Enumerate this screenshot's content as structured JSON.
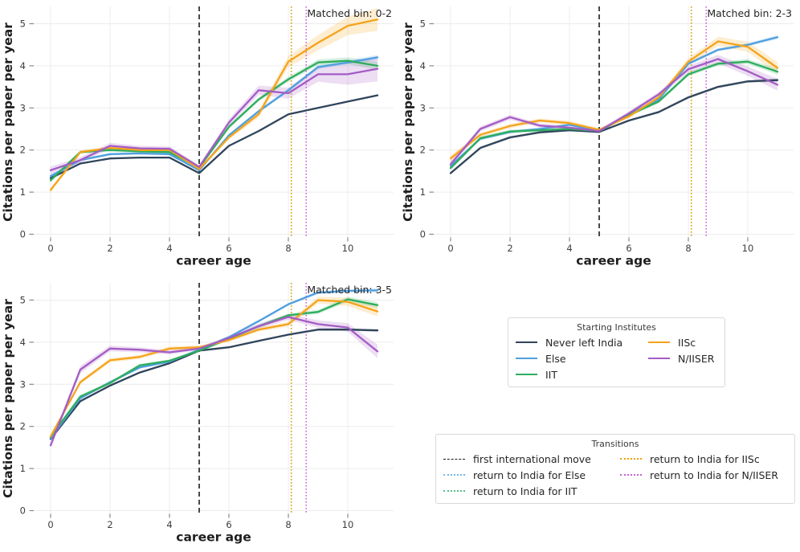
{
  "colors": {
    "never": "#30455c",
    "else": "#4f9fdf",
    "iit": "#2dad5d",
    "iisc": "#f5a31b",
    "niiser": "#a45cc5",
    "move": "#1c1c1c",
    "else_t": "#74b7e8",
    "iit_t": "#56bd8b",
    "iisc_t": "#f0a202",
    "niiser_t": "#c45fd4"
  },
  "legends": {
    "institutes": {
      "title": "Starting Institutes",
      "items": [
        {
          "label": "Never left India",
          "key": "never",
          "style": "solid"
        },
        {
          "label": "Else",
          "key": "else",
          "style": "solid"
        },
        {
          "label": "IIT",
          "key": "iit",
          "style": "solid"
        },
        {
          "label": "IISc",
          "key": "iisc",
          "style": "solid"
        },
        {
          "label": "N/IISER",
          "key": "niiser",
          "style": "solid"
        }
      ]
    },
    "transitions": {
      "title": "Transitions",
      "items": [
        {
          "label": "first international move",
          "key": "move",
          "style": "dashed"
        },
        {
          "label": "return to India for Else",
          "key": "else_t",
          "style": "dotted"
        },
        {
          "label": "return to India for IIT",
          "key": "iit_t",
          "style": "dotted"
        },
        {
          "label": "return to India for IISc",
          "key": "iisc_t",
          "style": "dotted"
        },
        {
          "label": "return to India for N/IISER",
          "key": "niiser_t",
          "style": "dotted"
        }
      ]
    }
  },
  "chart_data": [
    {
      "type": "line",
      "title": "Matched bin: 0-2",
      "xlabel": "career age",
      "ylabel": "Citations per paper per year",
      "x": [
        0,
        1,
        2,
        3,
        4,
        5,
        6,
        7,
        8,
        9,
        10,
        11
      ],
      "xticks": [
        0,
        2,
        4,
        6,
        8,
        10
      ],
      "yticks": [
        0,
        1,
        2,
        3,
        4,
        5
      ],
      "ylim": [
        0,
        5.4
      ],
      "series": [
        {
          "name": "Never left India",
          "key": "never",
          "values": [
            1.33,
            1.68,
            1.8,
            1.82,
            1.82,
            1.45,
            2.1,
            2.45,
            2.85,
            3.0,
            3.15,
            3.3
          ],
          "band": [
            0.02,
            0.02,
            0.02,
            0.02,
            0.02,
            0.02,
            0.02,
            0.02,
            0.02,
            0.02,
            0.02,
            0.02
          ]
        },
        {
          "name": "Else",
          "key": "else",
          "values": [
            1.38,
            1.76,
            1.9,
            1.92,
            1.9,
            1.52,
            2.35,
            2.92,
            3.42,
            3.97,
            4.08,
            4.2
          ],
          "band": [
            0.04,
            0.03,
            0.03,
            0.03,
            0.03,
            0.03,
            0.03,
            0.04,
            0.04,
            0.05,
            0.05,
            0.06
          ]
        },
        {
          "name": "IIT",
          "key": "iit",
          "values": [
            1.28,
            1.95,
            2.0,
            1.97,
            1.95,
            1.58,
            2.55,
            3.2,
            3.68,
            4.08,
            4.12,
            4.0
          ],
          "band": [
            0.05,
            0.04,
            0.04,
            0.04,
            0.04,
            0.03,
            0.04,
            0.05,
            0.06,
            0.07,
            0.08,
            0.1
          ]
        },
        {
          "name": "IISc",
          "key": "iisc",
          "values": [
            1.05,
            1.95,
            2.05,
            2.0,
            2.0,
            1.55,
            2.3,
            2.85,
            4.1,
            4.55,
            4.95,
            5.1
          ],
          "band": [
            0.05,
            0.04,
            0.04,
            0.04,
            0.04,
            0.03,
            0.05,
            0.08,
            0.13,
            0.18,
            0.22,
            0.27
          ]
        },
        {
          "name": "N/IISER",
          "key": "niiser",
          "values": [
            1.52,
            1.76,
            2.1,
            2.04,
            2.03,
            1.6,
            2.65,
            3.42,
            3.35,
            3.8,
            3.8,
            3.93
          ],
          "band": [
            0.09,
            0.07,
            0.07,
            0.06,
            0.06,
            0.04,
            0.08,
            0.11,
            0.13,
            0.18,
            0.25,
            0.3
          ]
        }
      ],
      "vlines": [
        {
          "name": "first international move",
          "key": "move",
          "x": 5,
          "style": "dashed"
        },
        {
          "name": "return to India for Else",
          "key": "else_t",
          "x": 8.1,
          "style": "dotted"
        },
        {
          "name": "return to India for IIT",
          "key": "iit_t",
          "x": 8.1,
          "style": "dotted"
        },
        {
          "name": "return to India for IISc",
          "key": "iisc_t",
          "x": 8.1,
          "style": "dotted"
        },
        {
          "name": "return to India for N/IISER",
          "key": "niiser_t",
          "x": 8.6,
          "style": "dotted"
        }
      ]
    },
    {
      "type": "line",
      "title": "Matched bin: 2-3",
      "xlabel": "career age",
      "ylabel": "Citations per paper per year",
      "x": [
        0,
        1,
        2,
        3,
        4,
        5,
        6,
        7,
        8,
        9,
        10,
        11
      ],
      "xticks": [
        0,
        2,
        4,
        6,
        8,
        10
      ],
      "yticks": [
        0,
        1,
        2,
        3,
        4,
        5
      ],
      "ylim": [
        0,
        5.4
      ],
      "series": [
        {
          "name": "Never left India",
          "key": "never",
          "values": [
            1.45,
            2.05,
            2.3,
            2.42,
            2.47,
            2.43,
            2.7,
            2.9,
            3.25,
            3.5,
            3.63,
            3.66
          ],
          "band": [
            0.03,
            0.03,
            0.03,
            0.03,
            0.03,
            0.02,
            0.02,
            0.03,
            0.03,
            0.03,
            0.03,
            0.04
          ]
        },
        {
          "name": "Else",
          "key": "else",
          "values": [
            1.62,
            2.27,
            2.43,
            2.5,
            2.6,
            2.45,
            2.85,
            3.2,
            4.05,
            4.38,
            4.5,
            4.68
          ],
          "band": [
            0.04,
            0.04,
            0.04,
            0.03,
            0.03,
            0.03,
            0.03,
            0.04,
            0.04,
            0.04,
            0.04,
            0.05
          ]
        },
        {
          "name": "IIT",
          "key": "iit",
          "values": [
            1.57,
            2.28,
            2.44,
            2.47,
            2.5,
            2.45,
            2.83,
            3.15,
            3.8,
            4.05,
            4.1,
            3.86
          ],
          "band": [
            0.05,
            0.04,
            0.04,
            0.04,
            0.04,
            0.03,
            0.04,
            0.04,
            0.05,
            0.05,
            0.06,
            0.07
          ]
        },
        {
          "name": "IISc",
          "key": "iisc",
          "values": [
            1.8,
            2.36,
            2.57,
            2.7,
            2.64,
            2.48,
            2.8,
            3.25,
            4.1,
            4.58,
            4.45,
            3.95
          ],
          "band": [
            0.08,
            0.05,
            0.05,
            0.05,
            0.05,
            0.04,
            0.05,
            0.06,
            0.08,
            0.11,
            0.12,
            0.14
          ]
        },
        {
          "name": "N/IISER",
          "key": "niiser",
          "values": [
            1.66,
            2.5,
            2.78,
            2.58,
            2.53,
            2.45,
            2.87,
            3.32,
            3.92,
            4.16,
            3.87,
            3.55
          ],
          "band": [
            0.07,
            0.06,
            0.06,
            0.05,
            0.05,
            0.04,
            0.05,
            0.06,
            0.08,
            0.1,
            0.11,
            0.14
          ]
        }
      ],
      "vlines": [
        {
          "name": "first international move",
          "key": "move",
          "x": 5,
          "style": "dashed"
        },
        {
          "name": "return to India for Else",
          "key": "else_t",
          "x": 8.1,
          "style": "dotted"
        },
        {
          "name": "return to India for IIT",
          "key": "iit_t",
          "x": 8.1,
          "style": "dotted"
        },
        {
          "name": "return to India for IISc",
          "key": "iisc_t",
          "x": 8.1,
          "style": "dotted"
        },
        {
          "name": "return to India for N/IISER",
          "key": "niiser_t",
          "x": 8.6,
          "style": "dotted"
        }
      ]
    },
    {
      "type": "line",
      "title": "Matched bin: 3-5",
      "xlabel": "career age",
      "ylabel": "Citations per paper per year",
      "x": [
        0,
        1,
        2,
        3,
        4,
        5,
        6,
        7,
        8,
        9,
        10,
        11
      ],
      "xticks": [
        0,
        2,
        4,
        6,
        8,
        10
      ],
      "yticks": [
        0,
        1,
        2,
        3,
        4,
        5
      ],
      "ylim": [
        0,
        5.4
      ],
      "series": [
        {
          "name": "Never left India",
          "key": "never",
          "values": [
            1.7,
            2.6,
            2.97,
            3.28,
            3.5,
            3.8,
            3.88,
            4.03,
            4.18,
            4.3,
            4.3,
            4.28
          ],
          "band": [
            0.02,
            0.02,
            0.02,
            0.02,
            0.02,
            0.02,
            0.02,
            0.02,
            0.02,
            0.03,
            0.03,
            0.03
          ]
        },
        {
          "name": "Else",
          "key": "else",
          "values": [
            1.72,
            2.67,
            3.05,
            3.4,
            3.54,
            3.82,
            4.12,
            4.5,
            4.9,
            5.18,
            5.22,
            5.23
          ],
          "band": [
            0.03,
            0.03,
            0.03,
            0.03,
            0.03,
            0.02,
            0.03,
            0.03,
            0.03,
            0.04,
            0.04,
            0.05
          ]
        },
        {
          "name": "IIT",
          "key": "iit",
          "values": [
            1.75,
            2.71,
            3.03,
            3.45,
            3.56,
            3.8,
            4.08,
            4.38,
            4.64,
            4.72,
            5.02,
            4.88
          ],
          "band": [
            0.04,
            0.04,
            0.04,
            0.04,
            0.03,
            0.03,
            0.03,
            0.04,
            0.04,
            0.05,
            0.06,
            0.07
          ]
        },
        {
          "name": "IISc",
          "key": "iisc",
          "values": [
            1.76,
            3.05,
            3.57,
            3.65,
            3.85,
            3.88,
            4.05,
            4.3,
            4.43,
            5.0,
            4.96,
            4.73
          ],
          "band": [
            0.05,
            0.05,
            0.05,
            0.05,
            0.05,
            0.04,
            0.04,
            0.05,
            0.06,
            0.08,
            0.1,
            0.12
          ]
        },
        {
          "name": "N/IISER",
          "key": "niiser",
          "values": [
            1.55,
            3.35,
            3.85,
            3.82,
            3.76,
            3.85,
            4.1,
            4.38,
            4.6,
            4.43,
            4.35,
            3.78
          ],
          "band": [
            0.06,
            0.09,
            0.07,
            0.06,
            0.05,
            0.04,
            0.05,
            0.06,
            0.07,
            0.09,
            0.1,
            0.16
          ]
        }
      ],
      "vlines": [
        {
          "name": "first international move",
          "key": "move",
          "x": 5,
          "style": "dashed"
        },
        {
          "name": "return to India for Else",
          "key": "else_t",
          "x": 8.1,
          "style": "dotted"
        },
        {
          "name": "return to India for IIT",
          "key": "iit_t",
          "x": 8.1,
          "style": "dotted"
        },
        {
          "name": "return to India for IISc",
          "key": "iisc_t",
          "x": 8.1,
          "style": "dotted"
        },
        {
          "name": "return to India for N/IISER",
          "key": "niiser_t",
          "x": 8.6,
          "style": "dotted"
        }
      ]
    }
  ]
}
